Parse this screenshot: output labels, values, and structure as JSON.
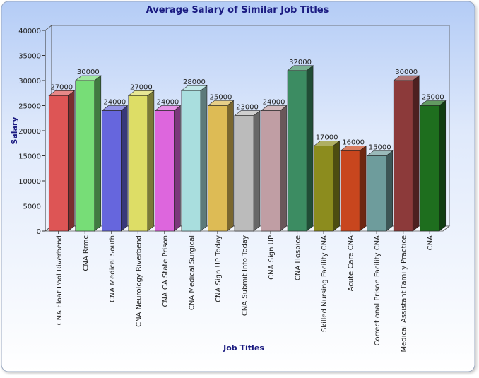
{
  "chart_data": {
    "type": "bar",
    "title": "Average Salary of Similar Job Titles",
    "xlabel": "Job Titles",
    "ylabel": "Salary",
    "ylim": [
      0,
      40000
    ],
    "yticks": [
      0,
      5000,
      10000,
      15000,
      20000,
      25000,
      30000,
      35000,
      40000
    ],
    "grid": false,
    "legend": "none",
    "categories": [
      "CNA Float Pool Riverbend",
      "CNA Rrmc",
      "CNA Medical South",
      "CNA Neurology Riverbend",
      "CNA CA State Prison",
      "CNA Medical Surgical",
      "CNA Sign UP Today",
      "CNA Submit Info Today",
      "CNA Sign UP",
      "CNA Hospice",
      "Skilled Nursing Facility CNA",
      "Acute Care CNA",
      "Correctional Prison Facility CNA",
      "Medical Assistant Family Practice",
      "CNA"
    ],
    "values": [
      27000,
      30000,
      24000,
      27000,
      24000,
      28000,
      25000,
      23000,
      24000,
      32000,
      17000,
      16000,
      15000,
      30000,
      25000
    ],
    "colors": [
      "#dd5555",
      "#77dd77",
      "#6666dd",
      "#dddd66",
      "#dd66dd",
      "#a9dede",
      "#ddbb55",
      "#bbbbbb",
      "#c09ea4",
      "#3c8c62",
      "#8c8c1e",
      "#c8461e",
      "#6e9c9c",
      "#8c3a3a",
      "#1e6e1e"
    ]
  }
}
